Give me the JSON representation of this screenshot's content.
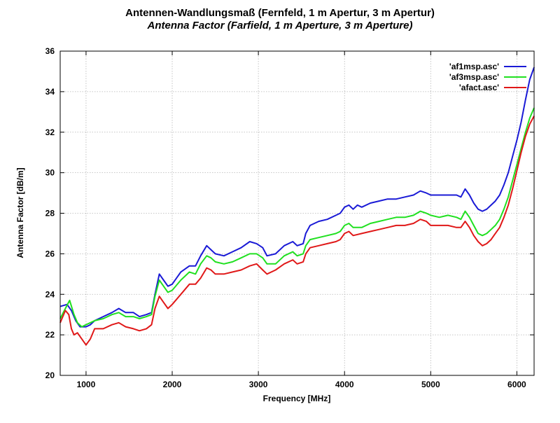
{
  "chart_data": {
    "type": "line",
    "title": "Antennen-Wandlungsmaß (Fernfeld, 1 m Apertur, 3 m Apertur)",
    "subtitle": "Antenna Factor (Farfield, 1 m Aperture, 3 m Aperture)",
    "xlabel": "Frequency [MHz]",
    "ylabel": "Antenna Factor [dB/m]",
    "xlim": [
      700,
      6200
    ],
    "ylim": [
      20,
      36
    ],
    "xticks": [
      1000,
      2000,
      3000,
      4000,
      5000,
      6000
    ],
    "yticks": [
      20,
      22,
      24,
      26,
      28,
      30,
      32,
      34,
      36
    ],
    "grid": true,
    "legend_position": "top-right",
    "series": [
      {
        "name": "'af1msp.asc'",
        "color": "#1a1ad6",
        "points": [
          [
            700,
            23.4
          ],
          [
            780,
            23.5
          ],
          [
            830,
            23.2
          ],
          [
            880,
            22.7
          ],
          [
            930,
            22.4
          ],
          [
            1000,
            22.4
          ],
          [
            1050,
            22.5
          ],
          [
            1100,
            22.7
          ],
          [
            1200,
            22.9
          ],
          [
            1300,
            23.1
          ],
          [
            1380,
            23.3
          ],
          [
            1460,
            23.1
          ],
          [
            1550,
            23.1
          ],
          [
            1620,
            22.9
          ],
          [
            1700,
            23.0
          ],
          [
            1760,
            23.1
          ],
          [
            1800,
            24.0
          ],
          [
            1850,
            25.0
          ],
          [
            1900,
            24.7
          ],
          [
            1950,
            24.4
          ],
          [
            2000,
            24.5
          ],
          [
            2100,
            25.1
          ],
          [
            2200,
            25.4
          ],
          [
            2270,
            25.4
          ],
          [
            2330,
            25.9
          ],
          [
            2400,
            26.4
          ],
          [
            2450,
            26.2
          ],
          [
            2500,
            26.0
          ],
          [
            2600,
            25.9
          ],
          [
            2700,
            26.1
          ],
          [
            2800,
            26.3
          ],
          [
            2900,
            26.6
          ],
          [
            2980,
            26.5
          ],
          [
            3050,
            26.3
          ],
          [
            3100,
            25.9
          ],
          [
            3200,
            26.0
          ],
          [
            3300,
            26.4
          ],
          [
            3400,
            26.6
          ],
          [
            3450,
            26.4
          ],
          [
            3520,
            26.5
          ],
          [
            3550,
            27.0
          ],
          [
            3600,
            27.4
          ],
          [
            3650,
            27.5
          ],
          [
            3700,
            27.6
          ],
          [
            3800,
            27.7
          ],
          [
            3900,
            27.9
          ],
          [
            3950,
            28.0
          ],
          [
            4000,
            28.3
          ],
          [
            4050,
            28.4
          ],
          [
            4100,
            28.2
          ],
          [
            4150,
            28.4
          ],
          [
            4200,
            28.3
          ],
          [
            4300,
            28.5
          ],
          [
            4400,
            28.6
          ],
          [
            4500,
            28.7
          ],
          [
            4600,
            28.7
          ],
          [
            4700,
            28.8
          ],
          [
            4800,
            28.9
          ],
          [
            4880,
            29.1
          ],
          [
            4950,
            29.0
          ],
          [
            5000,
            28.9
          ],
          [
            5100,
            28.9
          ],
          [
            5200,
            28.9
          ],
          [
            5300,
            28.9
          ],
          [
            5350,
            28.8
          ],
          [
            5400,
            29.2
          ],
          [
            5450,
            28.9
          ],
          [
            5500,
            28.5
          ],
          [
            5550,
            28.2
          ],
          [
            5600,
            28.1
          ],
          [
            5650,
            28.2
          ],
          [
            5700,
            28.4
          ],
          [
            5750,
            28.6
          ],
          [
            5800,
            28.9
          ],
          [
            5850,
            29.4
          ],
          [
            5900,
            30.0
          ],
          [
            5950,
            30.8
          ],
          [
            6000,
            31.6
          ],
          [
            6050,
            32.5
          ],
          [
            6100,
            33.6
          ],
          [
            6150,
            34.6
          ],
          [
            6200,
            35.2
          ]
        ]
      },
      {
        "name": "'af3msp.asc'",
        "color": "#20e020",
        "points": [
          [
            700,
            22.8
          ],
          [
            760,
            23.3
          ],
          [
            810,
            23.7
          ],
          [
            860,
            23.0
          ],
          [
            900,
            22.6
          ],
          [
            950,
            22.4
          ],
          [
            1000,
            22.5
          ],
          [
            1050,
            22.6
          ],
          [
            1100,
            22.7
          ],
          [
            1200,
            22.8
          ],
          [
            1300,
            23.0
          ],
          [
            1380,
            23.1
          ],
          [
            1460,
            22.9
          ],
          [
            1550,
            22.9
          ],
          [
            1620,
            22.8
          ],
          [
            1700,
            22.9
          ],
          [
            1760,
            23.0
          ],
          [
            1800,
            23.9
          ],
          [
            1850,
            24.7
          ],
          [
            1900,
            24.4
          ],
          [
            1950,
            24.1
          ],
          [
            2000,
            24.2
          ],
          [
            2100,
            24.7
          ],
          [
            2200,
            25.1
          ],
          [
            2270,
            25.0
          ],
          [
            2330,
            25.5
          ],
          [
            2400,
            25.9
          ],
          [
            2450,
            25.8
          ],
          [
            2500,
            25.6
          ],
          [
            2600,
            25.5
          ],
          [
            2700,
            25.6
          ],
          [
            2800,
            25.8
          ],
          [
            2900,
            26.0
          ],
          [
            2980,
            26.0
          ],
          [
            3050,
            25.8
          ],
          [
            3100,
            25.5
          ],
          [
            3200,
            25.5
          ],
          [
            3300,
            25.9
          ],
          [
            3400,
            26.1
          ],
          [
            3450,
            25.9
          ],
          [
            3520,
            26.0
          ],
          [
            3550,
            26.4
          ],
          [
            3600,
            26.7
          ],
          [
            3700,
            26.8
          ],
          [
            3800,
            26.9
          ],
          [
            3900,
            27.0
          ],
          [
            3950,
            27.1
          ],
          [
            4000,
            27.4
          ],
          [
            4050,
            27.5
          ],
          [
            4100,
            27.3
          ],
          [
            4200,
            27.3
          ],
          [
            4300,
            27.5
          ],
          [
            4400,
            27.6
          ],
          [
            4500,
            27.7
          ],
          [
            4600,
            27.8
          ],
          [
            4700,
            27.8
          ],
          [
            4800,
            27.9
          ],
          [
            4880,
            28.1
          ],
          [
            4950,
            28.0
          ],
          [
            5000,
            27.9
          ],
          [
            5100,
            27.8
          ],
          [
            5200,
            27.9
          ],
          [
            5300,
            27.8
          ],
          [
            5350,
            27.7
          ],
          [
            5400,
            28.1
          ],
          [
            5450,
            27.8
          ],
          [
            5500,
            27.4
          ],
          [
            5550,
            27.0
          ],
          [
            5600,
            26.9
          ],
          [
            5650,
            27.0
          ],
          [
            5700,
            27.2
          ],
          [
            5750,
            27.4
          ],
          [
            5800,
            27.7
          ],
          [
            5850,
            28.2
          ],
          [
            5900,
            28.8
          ],
          [
            5950,
            29.6
          ],
          [
            6000,
            30.4
          ],
          [
            6050,
            31.2
          ],
          [
            6100,
            32.0
          ],
          [
            6150,
            32.7
          ],
          [
            6200,
            33.2
          ]
        ]
      },
      {
        "name": "'afact.asc'",
        "color": "#e01818",
        "points": [
          [
            700,
            22.6
          ],
          [
            760,
            23.2
          ],
          [
            800,
            23.0
          ],
          [
            830,
            22.3
          ],
          [
            860,
            22.0
          ],
          [
            900,
            22.1
          ],
          [
            950,
            21.8
          ],
          [
            1000,
            21.5
          ],
          [
            1050,
            21.8
          ],
          [
            1100,
            22.3
          ],
          [
            1200,
            22.3
          ],
          [
            1300,
            22.5
          ],
          [
            1380,
            22.6
          ],
          [
            1460,
            22.4
          ],
          [
            1550,
            22.3
          ],
          [
            1620,
            22.2
          ],
          [
            1700,
            22.3
          ],
          [
            1760,
            22.5
          ],
          [
            1800,
            23.3
          ],
          [
            1850,
            23.9
          ],
          [
            1900,
            23.6
          ],
          [
            1950,
            23.3
          ],
          [
            2000,
            23.5
          ],
          [
            2100,
            24.0
          ],
          [
            2200,
            24.5
          ],
          [
            2270,
            24.5
          ],
          [
            2330,
            24.8
          ],
          [
            2400,
            25.3
          ],
          [
            2450,
            25.2
          ],
          [
            2500,
            25.0
          ],
          [
            2600,
            25.0
          ],
          [
            2700,
            25.1
          ],
          [
            2800,
            25.2
          ],
          [
            2900,
            25.4
          ],
          [
            2980,
            25.5
          ],
          [
            3050,
            25.2
          ],
          [
            3100,
            25.0
          ],
          [
            3200,
            25.2
          ],
          [
            3300,
            25.5
          ],
          [
            3400,
            25.7
          ],
          [
            3450,
            25.5
          ],
          [
            3520,
            25.6
          ],
          [
            3550,
            26.0
          ],
          [
            3600,
            26.3
          ],
          [
            3700,
            26.4
          ],
          [
            3800,
            26.5
          ],
          [
            3900,
            26.6
          ],
          [
            3950,
            26.7
          ],
          [
            4000,
            27.0
          ],
          [
            4050,
            27.1
          ],
          [
            4100,
            26.9
          ],
          [
            4200,
            27.0
          ],
          [
            4300,
            27.1
          ],
          [
            4400,
            27.2
          ],
          [
            4500,
            27.3
          ],
          [
            4600,
            27.4
          ],
          [
            4700,
            27.4
          ],
          [
            4800,
            27.5
          ],
          [
            4880,
            27.7
          ],
          [
            4950,
            27.6
          ],
          [
            5000,
            27.4
          ],
          [
            5100,
            27.4
          ],
          [
            5200,
            27.4
          ],
          [
            5300,
            27.3
          ],
          [
            5350,
            27.3
          ],
          [
            5400,
            27.6
          ],
          [
            5450,
            27.3
          ],
          [
            5500,
            26.9
          ],
          [
            5550,
            26.6
          ],
          [
            5600,
            26.4
          ],
          [
            5650,
            26.5
          ],
          [
            5700,
            26.7
          ],
          [
            5750,
            27.0
          ],
          [
            5800,
            27.3
          ],
          [
            5850,
            27.8
          ],
          [
            5900,
            28.4
          ],
          [
            5950,
            29.2
          ],
          [
            6000,
            30.1
          ],
          [
            6050,
            31.0
          ],
          [
            6100,
            31.8
          ],
          [
            6150,
            32.4
          ],
          [
            6200,
            32.8
          ]
        ]
      }
    ]
  }
}
